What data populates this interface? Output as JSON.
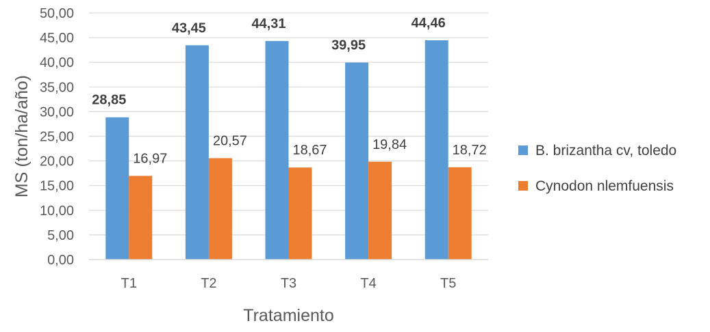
{
  "chart_data": {
    "type": "bar",
    "categories": [
      "T1",
      "T2",
      "T3",
      "T4",
      "T5"
    ],
    "series": [
      {
        "name": "B. brizantha cv, toledo",
        "values": [
          28.85,
          43.45,
          44.31,
          39.95,
          44.46
        ],
        "labels": [
          "28,85",
          "43,45",
          "44,31",
          "39,95",
          "44,46"
        ],
        "color": "#5B9BD5",
        "label_weight": "bold"
      },
      {
        "name": "Cynodon nlemfuensis",
        "values": [
          16.97,
          20.57,
          18.67,
          19.84,
          18.72
        ],
        "labels": [
          "16,97",
          "20,57",
          "18,67",
          "19,84",
          "18,72"
        ],
        "color": "#ED7D31",
        "label_weight": "normal"
      }
    ],
    "xlabel": "Tratamiento",
    "ylabel": "MS (ton/ha/año)",
    "ylim": [
      0,
      50
    ],
    "yticks": [
      0,
      5,
      10,
      15,
      20,
      25,
      30,
      35,
      40,
      45,
      50
    ],
    "ytick_labels": [
      "0,00",
      "5,00",
      "10,00",
      "15,00",
      "20,00",
      "25,00",
      "30,00",
      "35,00",
      "40,00",
      "45,00",
      "50,00"
    ],
    "grid": true,
    "gridline_color": "#D9D9D9",
    "legend_position": "right"
  }
}
